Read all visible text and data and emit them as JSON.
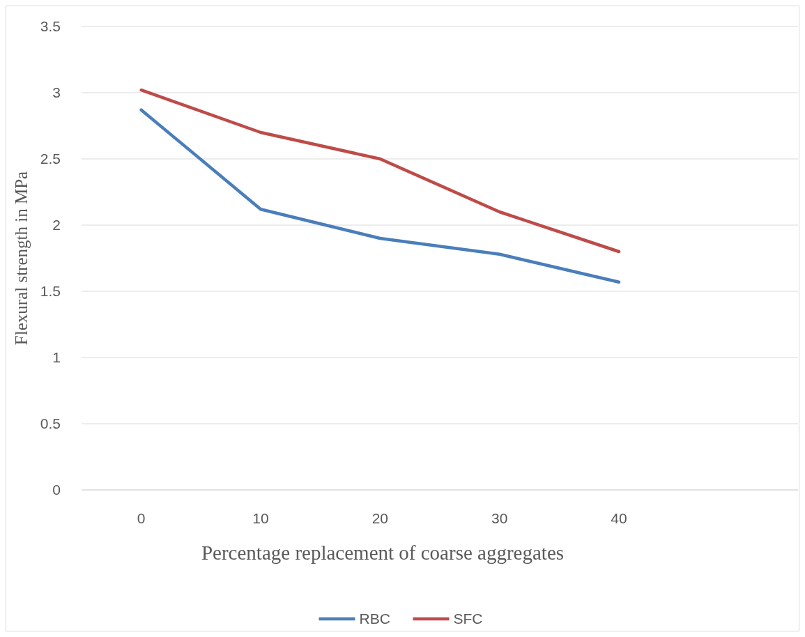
{
  "chart_data": {
    "type": "line",
    "xlabel": "Percentage replacement of coarse aggregates",
    "ylabel": "Flexural strength in MPa",
    "categories": [
      "0",
      "10",
      "20",
      "30",
      "40",
      null
    ],
    "series": [
      {
        "name": "RBC",
        "color": "#4a7ebb",
        "values": [
          2.87,
          2.12,
          1.9,
          1.78,
          1.57,
          null
        ]
      },
      {
        "name": "SFC",
        "color": "#be4b48",
        "values": [
          3.02,
          2.7,
          2.5,
          2.1,
          1.8,
          null
        ]
      }
    ],
    "ylim": [
      0,
      3.5
    ],
    "yticks": [
      0,
      0.5,
      1,
      1.5,
      2,
      2.5,
      3,
      3.5
    ],
    "grid": "y",
    "legend": "bottom",
    "marker": "none",
    "line_style": "solid"
  }
}
